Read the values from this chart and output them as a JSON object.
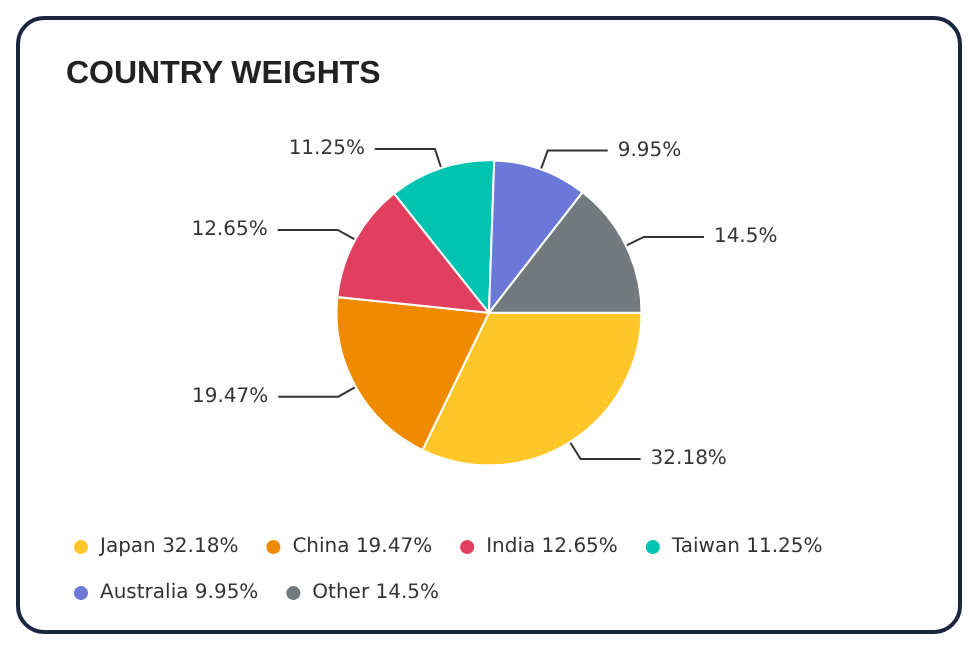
{
  "chart_data": {
    "type": "pie",
    "title": "COUNTRY WEIGHTS",
    "categories": [
      "Japan",
      "China",
      "India",
      "Taiwan",
      "Australia",
      "Other"
    ],
    "values": [
      32.18,
      19.47,
      12.65,
      11.25,
      9.95,
      14.5
    ],
    "value_labels": [
      "32.18%",
      "19.47%",
      "12.65%",
      "11.25%",
      "9.95%",
      "14.5%"
    ],
    "colors": [
      "#ffc629",
      "#f08a00",
      "#e0405e",
      "#00c4b0",
      "#6c78d8",
      "#727a7e"
    ],
    "legend": "bottom"
  }
}
